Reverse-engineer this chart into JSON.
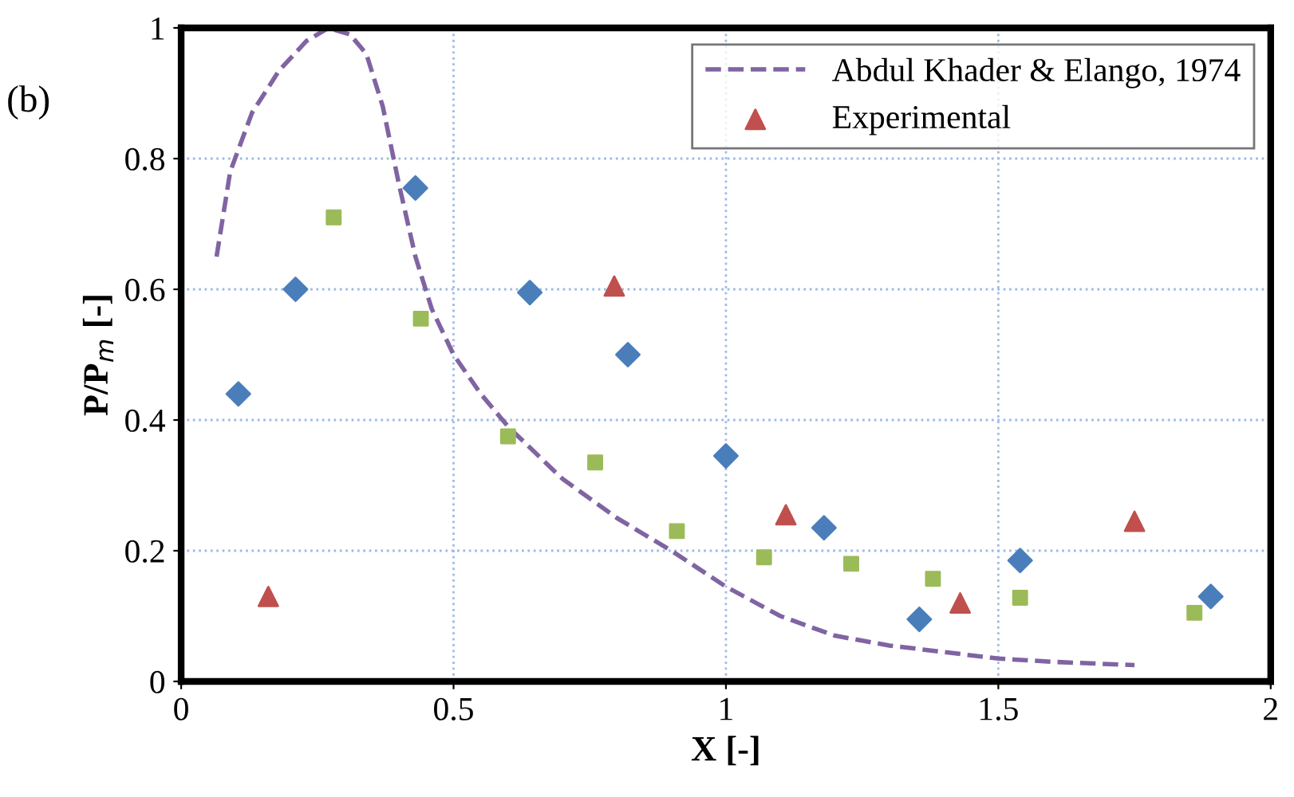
{
  "chart_data": {
    "type": "scatter",
    "xlabel": "X [-]",
    "ylabel": "P/P$_{m}$ [-]",
    "annotations": [
      "(b)"
    ],
    "xlim": [
      0,
      2
    ],
    "ylim": [
      0,
      1
    ],
    "xticks": [
      0,
      0.5,
      1,
      1.5,
      2
    ],
    "yticks": [
      0,
      0.2,
      0.4,
      0.6,
      0.8,
      1
    ],
    "grid": true,
    "legend": "top right",
    "series": [
      {
        "name": "Abdul Khader & Elango, 1974",
        "type": "line",
        "line_style": "dashed",
        "marker": "none",
        "color": "#8064a2",
        "x": [
          0.065,
          0.09,
          0.13,
          0.18,
          0.23,
          0.27,
          0.31,
          0.34,
          0.37,
          0.4,
          0.43,
          0.46,
          0.5,
          0.55,
          0.6,
          0.7,
          0.8,
          0.9,
          1.0,
          1.1,
          1.2,
          1.3,
          1.4,
          1.5,
          1.6,
          1.75
        ],
        "values": [
          0.65,
          0.78,
          0.87,
          0.935,
          0.98,
          1.0,
          0.99,
          0.96,
          0.88,
          0.76,
          0.65,
          0.57,
          0.5,
          0.44,
          0.39,
          0.31,
          0.25,
          0.2,
          0.145,
          0.1,
          0.07,
          0.055,
          0.045,
          0.035,
          0.03,
          0.025
        ]
      },
      {
        "marker": "diamond",
        "color": "#4a7ebb",
        "x": [
          0.105,
          0.21,
          0.43,
          0.64,
          0.82,
          1.0,
          1.18,
          1.355,
          1.54,
          1.89
        ],
        "values": [
          0.44,
          0.6,
          0.755,
          0.595,
          0.5,
          0.345,
          0.235,
          0.095,
          0.185,
          0.13
        ]
      },
      {
        "name": "Experimental",
        "marker": "triangle",
        "color": "#c0504d",
        "x": [
          0.16,
          0.795,
          1.11,
          1.43,
          1.75
        ],
        "values": [
          0.13,
          0.605,
          0.255,
          0.12,
          0.245
        ]
      },
      {
        "marker": "square",
        "color": "#9bbb59",
        "x": [
          0.28,
          0.44,
          0.6,
          0.76,
          0.91,
          1.07,
          1.23,
          1.38,
          1.54,
          1.86
        ],
        "values": [
          0.71,
          0.555,
          0.375,
          0.335,
          0.23,
          0.19,
          0.18,
          0.157,
          0.128,
          0.105
        ]
      }
    ]
  }
}
